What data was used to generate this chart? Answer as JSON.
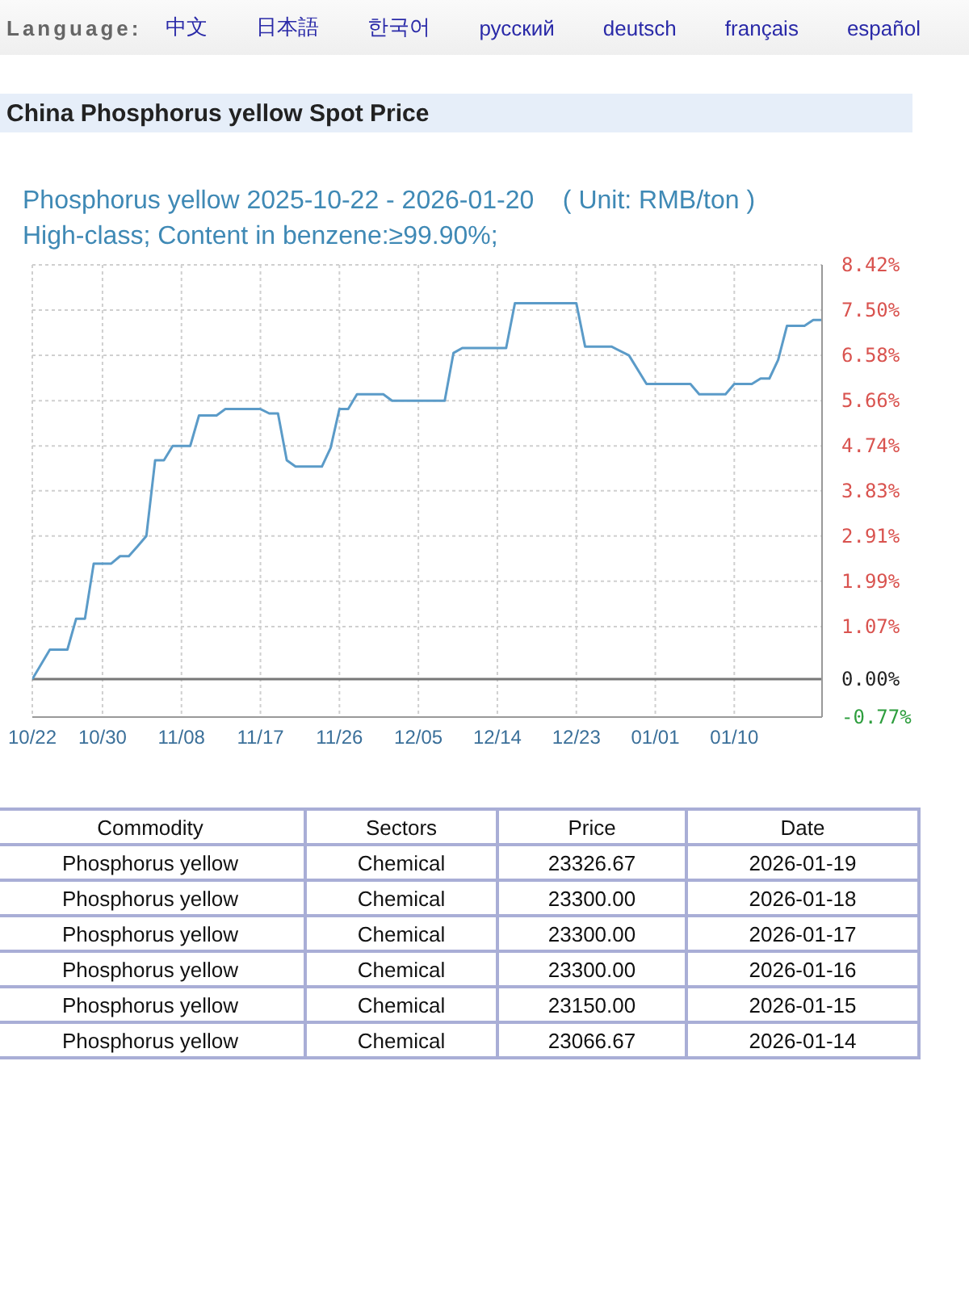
{
  "chart_data": [
    {
      "type": "other",
      "title": "China Phosphorus yellow Spot Price",
      "annotations": [
        "Language:",
        "中文",
        "日本語",
        "한국어",
        "русский",
        "deutsch",
        "français",
        "español"
      ]
    },
    {
      "type": "line",
      "title": "Phosphorus yellow 2025-10-22 - 2026-01-20    ( Unit: RMB/ton )",
      "subtitle": "High-class; Content in benzene:≥99.90%;",
      "x": [
        "2025-10-22",
        "2025-10-24",
        "2025-10-26",
        "2025-10-27",
        "2025-10-28",
        "2025-10-29",
        "2025-10-31",
        "2025-11-01",
        "2025-11-02",
        "2025-11-03",
        "2025-11-04",
        "2025-11-05",
        "2025-11-06",
        "2025-11-07",
        "2025-11-09",
        "2025-11-10",
        "2025-11-12",
        "2025-11-13",
        "2025-11-17",
        "2025-11-18",
        "2025-11-19",
        "2025-11-20",
        "2025-11-21",
        "2025-11-24",
        "2025-11-25",
        "2025-11-26",
        "2025-11-27",
        "2025-11-28",
        "2025-12-01",
        "2025-12-02",
        "2025-12-08",
        "2025-12-09",
        "2025-12-10",
        "2025-12-15",
        "2025-12-16",
        "2025-12-23",
        "2025-12-24",
        "2025-12-27",
        "2025-12-29",
        "2025-12-31",
        "2026-01-05",
        "2026-01-06",
        "2026-01-09",
        "2026-01-10",
        "2026-01-12",
        "2026-01-13",
        "2026-01-14",
        "2026-01-15",
        "2026-01-16",
        "2026-01-18",
        "2026-01-19",
        "2026-01-20"
      ],
      "series": [
        {
          "color": "#5b9bc8",
          "values": [
            0.0,
            0.6,
            0.6,
            1.23,
            1.23,
            2.35,
            2.35,
            2.5,
            2.5,
            2.7,
            2.91,
            4.45,
            4.45,
            4.74,
            4.74,
            5.36,
            5.36,
            5.49,
            5.49,
            5.4,
            5.4,
            4.45,
            4.32,
            4.32,
            4.7,
            5.49,
            5.49,
            5.79,
            5.79,
            5.66,
            5.66,
            6.63,
            6.73,
            6.73,
            7.64,
            7.64,
            6.76,
            6.76,
            6.58,
            6.0,
            6.0,
            5.79,
            5.79,
            6.0,
            6.0,
            6.11,
            6.11,
            6.49,
            7.18,
            7.18,
            7.3,
            7.3
          ]
        }
      ],
      "xlim": [
        "2025-10-22",
        "2026-01-20"
      ],
      "xticks": [
        {
          "value": "2025-10-22",
          "label": "10/22"
        },
        {
          "value": "2025-10-30",
          "label": "10/30"
        },
        {
          "value": "2025-11-08",
          "label": "11/08"
        },
        {
          "value": "2025-11-17",
          "label": "11/17"
        },
        {
          "value": "2025-11-26",
          "label": "11/26"
        },
        {
          "value": "2025-12-05",
          "label": "12/05"
        },
        {
          "value": "2025-12-14",
          "label": "12/14"
        },
        {
          "value": "2025-12-23",
          "label": "12/23"
        },
        {
          "value": "2026-01-01",
          "label": "01/01"
        },
        {
          "value": "2026-01-10",
          "label": "01/10"
        }
      ],
      "ylim": [
        -0.77,
        8.42
      ],
      "yticks": [
        {
          "value": -0.77,
          "label": "-0.77%"
        },
        {
          "value": 0,
          "label": "0.00%"
        },
        {
          "value": 1.07,
          "label": "1.07%"
        },
        {
          "value": 1.99,
          "label": "1.99%"
        },
        {
          "value": 2.91,
          "label": "2.91%"
        },
        {
          "value": 3.83,
          "label": "3.83%"
        },
        {
          "value": 4.74,
          "label": "4.74%"
        },
        {
          "value": 5.66,
          "label": "5.66%"
        },
        {
          "value": 6.58,
          "label": "6.58%"
        },
        {
          "value": 7.5,
          "label": "7.50%"
        },
        {
          "value": 8.42,
          "label": "8.42%"
        }
      ],
      "ref_lines": [
        {
          "axis": "y",
          "value": 0,
          "color": "#777777"
        }
      ],
      "grid": true,
      "marker": "none",
      "line_style": "solid"
    },
    {
      "type": "other",
      "annotations": [
        "Commodity",
        "Sectors",
        "Price",
        "Date",
        "Phosphorus yellow",
        "Chemical",
        "23326.67",
        "2026-01-19",
        "Phosphorus yellow",
        "Chemical",
        "23300.00",
        "2026-01-18",
        "Phosphorus yellow",
        "Chemical",
        "23300.00",
        "2026-01-17",
        "Phosphorus yellow",
        "Chemical",
        "23300.00",
        "2026-01-16",
        "Phosphorus yellow",
        "Chemical",
        "23150.00",
        "2026-01-15",
        "Phosphorus yellow",
        "Chemical",
        "23066.67",
        "2026-01-14"
      ]
    }
  ]
}
